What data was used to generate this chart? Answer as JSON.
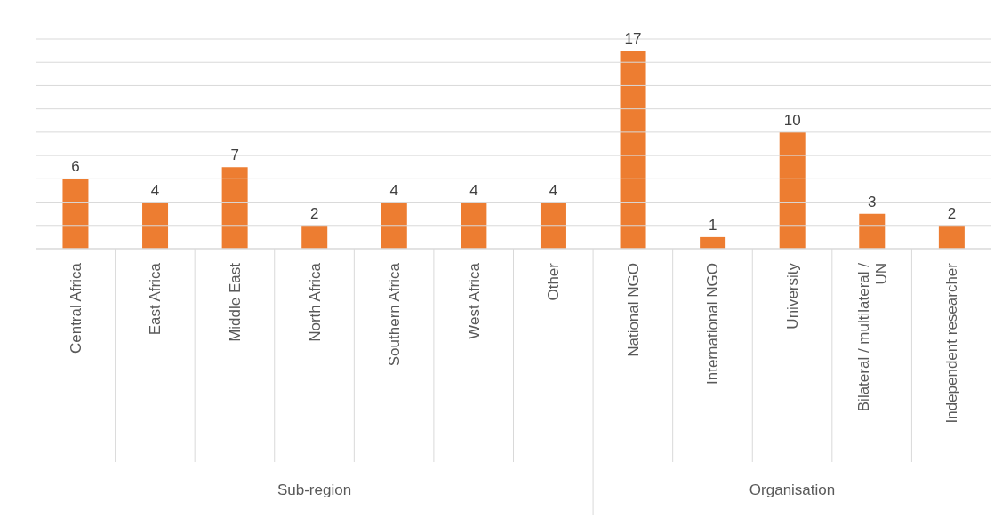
{
  "chart_data": {
    "type": "bar",
    "categories": [
      "Central Africa",
      "East Africa",
      "Middle East",
      "North Africa",
      "Southern Africa",
      "West Africa",
      "Other",
      "National NGO",
      "International NGO",
      "University",
      "Bilateral / multilateral / UN",
      "Independent researcher"
    ],
    "values": [
      6,
      4,
      7,
      2,
      4,
      4,
      4,
      17,
      1,
      10,
      3,
      2
    ],
    "color": "#ed7d31",
    "ylim": [
      0,
      18
    ],
    "yticks": [
      {
        "value": 0,
        "label": null
      },
      {
        "value": 2,
        "label": null
      },
      {
        "value": 4,
        "label": null
      },
      {
        "value": 6,
        "label": null
      },
      {
        "value": 8,
        "label": null
      },
      {
        "value": 10,
        "label": null
      },
      {
        "value": 12,
        "label": null
      },
      {
        "value": 14,
        "label": null
      },
      {
        "value": 16,
        "label": null
      },
      {
        "value": 18,
        "label": null
      }
    ],
    "grid": "y",
    "data_labels": true,
    "tick_labels": "x",
    "annotations": [
      "Sub-region",
      "Organisation"
    ]
  }
}
